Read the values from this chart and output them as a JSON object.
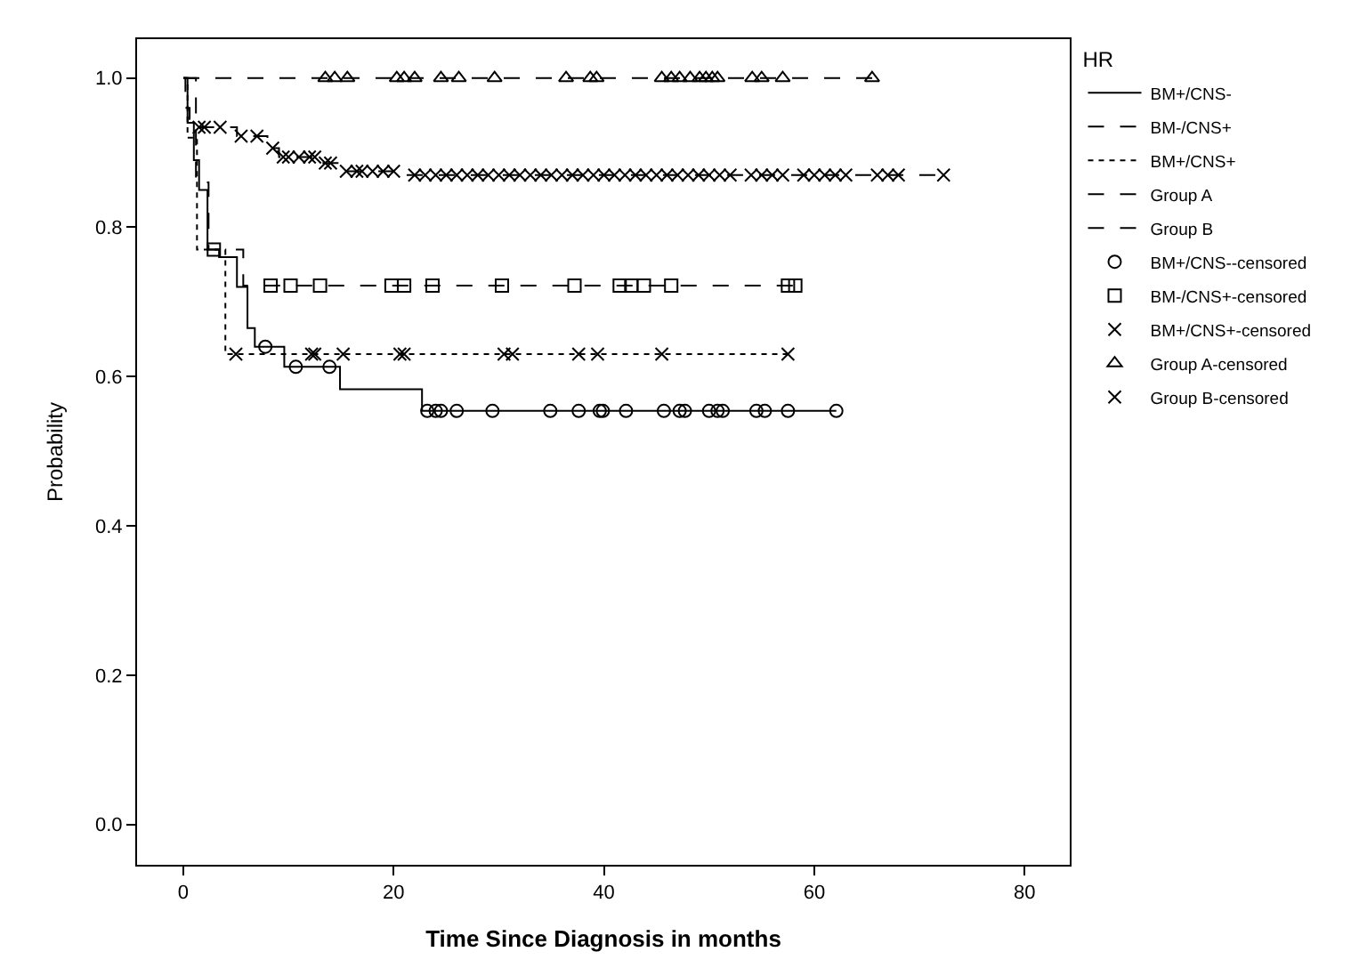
{
  "chart_data": {
    "type": "step",
    "xlabel": "Time Since Diagnosis in months",
    "ylabel": "Probability",
    "legend_title": "HR",
    "legend": "right",
    "xlim": [
      -4.4,
      84.3
    ],
    "xticks": [
      0,
      20,
      40,
      60,
      80
    ],
    "ylim": [
      -0.054,
      1.052
    ],
    "yticks": [
      {
        "value": 0,
        "label": "0.0"
      },
      {
        "value": 0.2,
        "label": "0.2"
      },
      {
        "value": 0.4,
        "label": "0.4"
      },
      {
        "value": 0.6,
        "label": "0.6"
      },
      {
        "value": 0.8,
        "label": "0.8"
      },
      {
        "value": 1.0,
        "label": "1.0"
      }
    ],
    "series": [
      {
        "name": "BM+/CNS-",
        "color": "#000000",
        "line_style": "solid",
        "marker": "none",
        "x": [
          0,
          0.4,
          1,
          1.5,
          2.3,
          3.4,
          5.1,
          6.1,
          6.8,
          9.6,
          14.9,
          22.7,
          62.1
        ],
        "values": [
          1.0,
          0.94,
          0.89,
          0.85,
          0.77,
          0.76,
          0.72,
          0.665,
          0.64,
          0.613,
          0.583,
          0.554,
          0.554
        ]
      },
      {
        "name": "BM-/CNS+",
        "color": "#000000",
        "line_style": "dashed",
        "marker": "none",
        "x": [
          0,
          1.2,
          2.4,
          5.7,
          58.2
        ],
        "values": [
          1.0,
          0.86,
          0.77,
          0.722,
          0.722
        ]
      },
      {
        "name": "BM+/CNS+",
        "color": "#000000",
        "line_style": "dotted",
        "marker": "none",
        "x": [
          0,
          0.4,
          1.3,
          4.0,
          57.5
        ],
        "values": [
          1.0,
          0.92,
          0.77,
          0.63,
          0.63
        ]
      },
      {
        "name": "Group A",
        "color": "#000000",
        "line_style": "dashed",
        "marker": "none",
        "x": [
          0,
          66
        ],
        "values": [
          1.0,
          1.0
        ]
      },
      {
        "name": "Group B",
        "color": "#000000",
        "line_style": "dashed",
        "marker": "none",
        "x": [
          0,
          0.2,
          0.6,
          1.2,
          5.1,
          8.0,
          9.1,
          13,
          15.2,
          21,
          72.3
        ],
        "values": [
          1.0,
          0.96,
          0.945,
          0.934,
          0.922,
          0.906,
          0.894,
          0.886,
          0.875,
          0.87,
          0.87
        ]
      },
      {
        "name": "BM+/CNS--censored",
        "type": "scatter",
        "color": "#000000",
        "marker": "circle",
        "x": [
          7.8,
          10.7,
          13.9,
          23.2,
          24.0,
          24.5,
          26.0,
          29.4,
          34.9,
          37.6,
          39.6,
          39.9,
          42.1,
          45.7,
          47.2,
          47.7,
          50.0,
          50.8,
          51.3,
          54.5,
          55.3,
          57.5,
          62.1
        ],
        "values": [
          0.64,
          0.613,
          0.613,
          0.554,
          0.554,
          0.554,
          0.554,
          0.554,
          0.554,
          0.554,
          0.554,
          0.554,
          0.554,
          0.554,
          0.554,
          0.554,
          0.554,
          0.554,
          0.554,
          0.554,
          0.554,
          0.554,
          0.554
        ]
      },
      {
        "name": "BM-/CNS+-censored",
        "type": "scatter",
        "color": "#000000",
        "marker": "square",
        "x": [
          2.9,
          8.3,
          10.2,
          13.0,
          19.8,
          21.0,
          23.7,
          30.3,
          37.2,
          41.5,
          42.6,
          43.8,
          46.4,
          57.5,
          58.2
        ],
        "values": [
          0.77,
          0.722,
          0.722,
          0.722,
          0.722,
          0.722,
          0.722,
          0.722,
          0.722,
          0.722,
          0.722,
          0.722,
          0.722,
          0.722,
          0.722
        ]
      },
      {
        "name": "BM+/CNS+-censored",
        "type": "scatter",
        "color": "#000000",
        "marker": "cross",
        "x": [
          5.0,
          12.2,
          12.5,
          15.2,
          20.6,
          21.0,
          30.5,
          31.3,
          37.6,
          39.4,
          45.5,
          57.5
        ],
        "values": [
          0.63,
          0.63,
          0.63,
          0.63,
          0.63,
          0.63,
          0.63,
          0.63,
          0.63,
          0.63,
          0.63,
          0.63
        ]
      },
      {
        "name": "Group A-censored",
        "type": "scatter",
        "color": "#000000",
        "marker": "triangle",
        "x": [
          13.5,
          14.4,
          15.6,
          20.3,
          21.0,
          22.0,
          24.5,
          26.2,
          29.6,
          36.4,
          38.7,
          39.3,
          45.5,
          46.4,
          47.2,
          48.2,
          49.1,
          49.7,
          50.3,
          50.8,
          54.1,
          55.0,
          57.0,
          65.5
        ],
        "values": [
          1.0,
          1.0,
          1.0,
          1.0,
          1.0,
          1.0,
          1.0,
          1.0,
          1.0,
          1.0,
          1.0,
          1.0,
          1.0,
          1.0,
          1.0,
          1.0,
          1.0,
          1.0,
          1.0,
          1.0,
          1.0,
          1.0,
          1.0,
          1.0
        ]
      },
      {
        "name": "Group B-censored",
        "type": "scatter",
        "color": "#000000",
        "marker": "cross",
        "x": [
          1.5,
          2,
          3.5,
          5.5,
          7,
          8.5,
          9.5,
          10,
          11,
          12,
          12.5,
          13.5,
          14,
          15.5,
          16.5,
          17,
          18,
          19,
          20,
          22,
          23,
          24,
          25,
          26,
          27,
          28,
          29,
          30,
          31,
          32,
          33,
          34,
          35,
          36,
          37,
          38,
          39,
          40,
          41,
          42,
          43,
          44,
          45,
          46,
          47,
          48,
          49,
          50,
          51,
          52,
          54,
          55,
          56,
          57,
          59,
          60,
          61,
          62,
          63,
          66,
          67,
          68,
          72.3
        ],
        "values": [
          0.934,
          0.934,
          0.934,
          0.922,
          0.922,
          0.906,
          0.894,
          0.894,
          0.894,
          0.894,
          0.894,
          0.886,
          0.886,
          0.875,
          0.875,
          0.875,
          0.875,
          0.875,
          0.875,
          0.87,
          0.87,
          0.87,
          0.87,
          0.87,
          0.87,
          0.87,
          0.87,
          0.87,
          0.87,
          0.87,
          0.87,
          0.87,
          0.87,
          0.87,
          0.87,
          0.87,
          0.87,
          0.87,
          0.87,
          0.87,
          0.87,
          0.87,
          0.87,
          0.87,
          0.87,
          0.87,
          0.87,
          0.87,
          0.87,
          0.87,
          0.87,
          0.87,
          0.87,
          0.87,
          0.87,
          0.87,
          0.87,
          0.87,
          0.87,
          0.87,
          0.87,
          0.87,
          0.87
        ]
      }
    ]
  }
}
